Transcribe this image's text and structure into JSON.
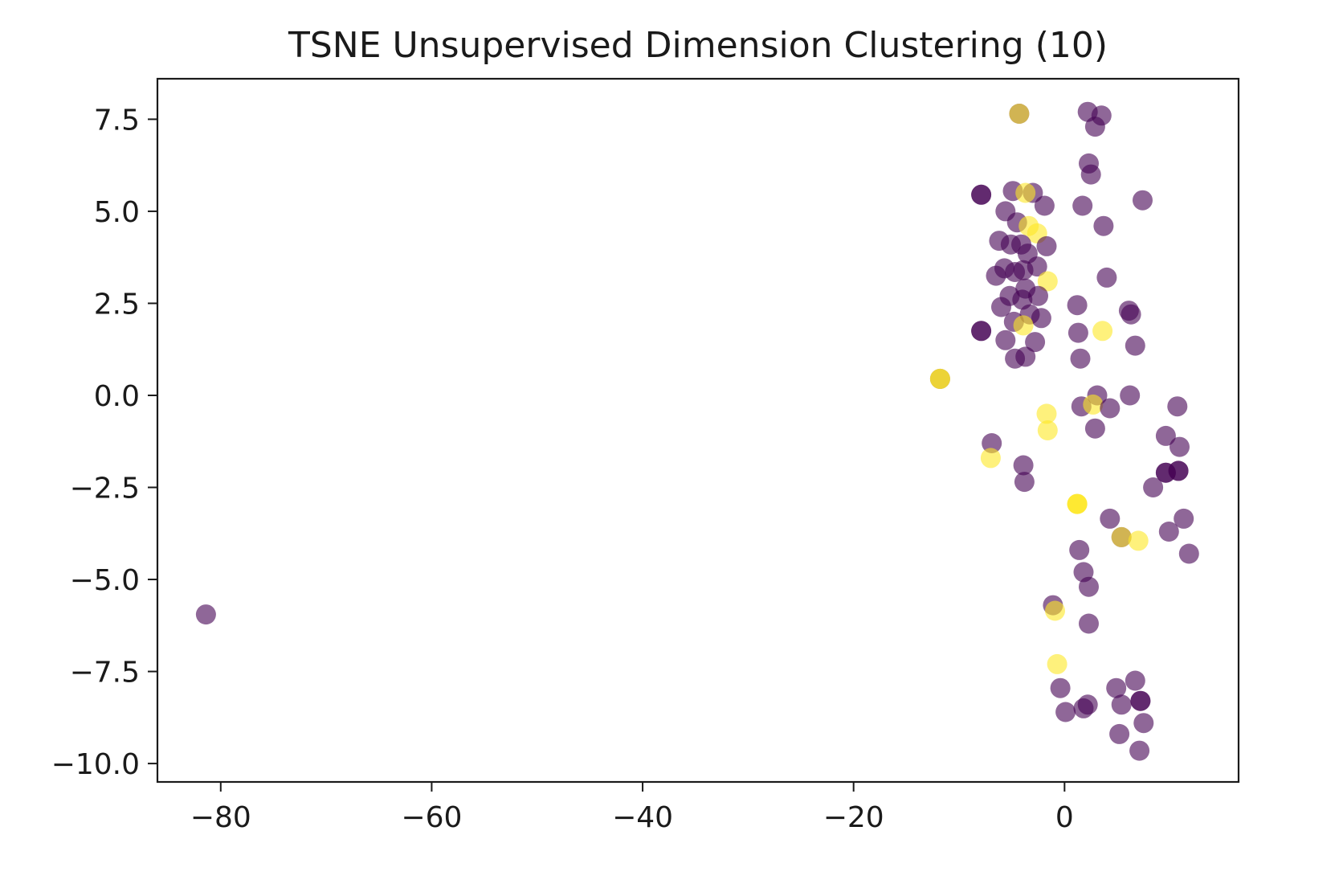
{
  "chart_data": {
    "type": "scatter",
    "title": "TSNE Unsupervised Dimension Clustering (10)",
    "xlabel": "",
    "ylabel": "",
    "xlim": [
      -86,
      16.5
    ],
    "ylim": [
      -10.5,
      8.6
    ],
    "x_ticks": [
      {
        "value": -80,
        "label": "−80"
      },
      {
        "value": -60,
        "label": "−60"
      },
      {
        "value": -40,
        "label": "−40"
      },
      {
        "value": -20,
        "label": "−20"
      },
      {
        "value": 0,
        "label": "0"
      }
    ],
    "y_ticks": [
      {
        "value": 7.5,
        "label": "7.5"
      },
      {
        "value": 5.0,
        "label": "5.0"
      },
      {
        "value": 2.5,
        "label": "2.5"
      },
      {
        "value": 0.0,
        "label": "0.0"
      },
      {
        "value": -2.5,
        "label": "−2.5"
      },
      {
        "value": -5.0,
        "label": "−5.0"
      },
      {
        "value": -7.5,
        "label": "−7.5"
      },
      {
        "value": -10.0,
        "label": "−10.0"
      }
    ],
    "grid": false,
    "legend": "none",
    "colors": {
      "purple": "#440154",
      "yellow": "#fde725"
    },
    "marker_alpha": 0.6,
    "points": [
      {
        "x": -81.4,
        "y": -5.95,
        "c": "purple"
      },
      {
        "x": -4.3,
        "y": 7.65,
        "c": "purple"
      },
      {
        "x": -4.3,
        "y": 7.65,
        "c": "yellow"
      },
      {
        "x": 2.2,
        "y": 7.7,
        "c": "purple"
      },
      {
        "x": 3.5,
        "y": 7.6,
        "c": "purple"
      },
      {
        "x": 2.9,
        "y": 7.3,
        "c": "purple"
      },
      {
        "x": 2.3,
        "y": 6.3,
        "c": "purple"
      },
      {
        "x": 2.5,
        "y": 6.0,
        "c": "purple"
      },
      {
        "x": 7.4,
        "y": 5.3,
        "c": "purple"
      },
      {
        "x": 1.7,
        "y": 5.15,
        "c": "purple"
      },
      {
        "x": 3.7,
        "y": 4.6,
        "c": "purple"
      },
      {
        "x": -7.9,
        "y": 5.45,
        "c": "purple"
      },
      {
        "x": -7.9,
        "y": 5.45,
        "c": "purple"
      },
      {
        "x": -4.9,
        "y": 5.55,
        "c": "purple"
      },
      {
        "x": -3.0,
        "y": 5.5,
        "c": "purple"
      },
      {
        "x": -3.7,
        "y": 5.5,
        "c": "yellow"
      },
      {
        "x": -1.9,
        "y": 5.15,
        "c": "purple"
      },
      {
        "x": -5.6,
        "y": 5.0,
        "c": "purple"
      },
      {
        "x": -4.5,
        "y": 4.7,
        "c": "purple"
      },
      {
        "x": -3.4,
        "y": 4.6,
        "c": "yellow"
      },
      {
        "x": -2.6,
        "y": 4.4,
        "c": "yellow"
      },
      {
        "x": -6.2,
        "y": 4.2,
        "c": "purple"
      },
      {
        "x": -5.1,
        "y": 4.1,
        "c": "purple"
      },
      {
        "x": -4.1,
        "y": 4.1,
        "c": "purple"
      },
      {
        "x": -1.7,
        "y": 4.05,
        "c": "purple"
      },
      {
        "x": -3.5,
        "y": 3.85,
        "c": "purple"
      },
      {
        "x": -5.7,
        "y": 3.45,
        "c": "purple"
      },
      {
        "x": -4.7,
        "y": 3.35,
        "c": "purple"
      },
      {
        "x": -3.9,
        "y": 3.4,
        "c": "purple"
      },
      {
        "x": -2.6,
        "y": 3.5,
        "c": "purple"
      },
      {
        "x": -6.5,
        "y": 3.25,
        "c": "purple"
      },
      {
        "x": -1.6,
        "y": 3.1,
        "c": "yellow"
      },
      {
        "x": -3.7,
        "y": 2.9,
        "c": "purple"
      },
      {
        "x": -5.2,
        "y": 2.7,
        "c": "purple"
      },
      {
        "x": -4.0,
        "y": 2.6,
        "c": "purple"
      },
      {
        "x": -2.5,
        "y": 2.7,
        "c": "purple"
      },
      {
        "x": -6.0,
        "y": 2.4,
        "c": "purple"
      },
      {
        "x": -3.3,
        "y": 2.2,
        "c": "purple"
      },
      {
        "x": -2.2,
        "y": 2.1,
        "c": "purple"
      },
      {
        "x": -4.8,
        "y": 2.0,
        "c": "purple"
      },
      {
        "x": -3.9,
        "y": 1.9,
        "c": "yellow"
      },
      {
        "x": -7.9,
        "y": 1.75,
        "c": "purple"
      },
      {
        "x": -7.9,
        "y": 1.75,
        "c": "purple"
      },
      {
        "x": -5.6,
        "y": 1.5,
        "c": "purple"
      },
      {
        "x": -2.8,
        "y": 1.45,
        "c": "purple"
      },
      {
        "x": -4.7,
        "y": 1.0,
        "c": "purple"
      },
      {
        "x": -3.7,
        "y": 1.05,
        "c": "purple"
      },
      {
        "x": 1.2,
        "y": 2.45,
        "c": "purple"
      },
      {
        "x": 3.6,
        "y": 1.75,
        "c": "yellow"
      },
      {
        "x": 1.3,
        "y": 1.7,
        "c": "purple"
      },
      {
        "x": 1.5,
        "y": 1.0,
        "c": "purple"
      },
      {
        "x": 4.0,
        "y": 3.2,
        "c": "purple"
      },
      {
        "x": 6.1,
        "y": 2.3,
        "c": "purple"
      },
      {
        "x": 6.3,
        "y": 2.2,
        "c": "purple"
      },
      {
        "x": 6.7,
        "y": 1.35,
        "c": "purple"
      },
      {
        "x": -11.8,
        "y": 0.45,
        "c": "purple"
      },
      {
        "x": -11.8,
        "y": 0.45,
        "c": "yellow"
      },
      {
        "x": -11.8,
        "y": 0.45,
        "c": "yellow"
      },
      {
        "x": 3.1,
        "y": 0.0,
        "c": "purple"
      },
      {
        "x": 6.2,
        "y": 0.0,
        "c": "purple"
      },
      {
        "x": 1.6,
        "y": -0.3,
        "c": "purple"
      },
      {
        "x": 2.7,
        "y": -0.25,
        "c": "yellow"
      },
      {
        "x": 4.3,
        "y": -0.35,
        "c": "purple"
      },
      {
        "x": 10.7,
        "y": -0.3,
        "c": "purple"
      },
      {
        "x": -1.7,
        "y": -0.5,
        "c": "yellow"
      },
      {
        "x": -1.6,
        "y": -0.95,
        "c": "yellow"
      },
      {
        "x": 2.9,
        "y": -0.9,
        "c": "purple"
      },
      {
        "x": 9.6,
        "y": -1.1,
        "c": "purple"
      },
      {
        "x": 10.9,
        "y": -1.4,
        "c": "purple"
      },
      {
        "x": -6.9,
        "y": -1.3,
        "c": "purple"
      },
      {
        "x": -7.0,
        "y": -1.7,
        "c": "yellow"
      },
      {
        "x": -3.9,
        "y": -1.9,
        "c": "purple"
      },
      {
        "x": -3.8,
        "y": -2.35,
        "c": "purple"
      },
      {
        "x": 9.6,
        "y": -2.1,
        "c": "purple"
      },
      {
        "x": 9.6,
        "y": -2.1,
        "c": "purple"
      },
      {
        "x": 10.8,
        "y": -2.05,
        "c": "purple"
      },
      {
        "x": 10.8,
        "y": -2.05,
        "c": "purple"
      },
      {
        "x": 8.4,
        "y": -2.5,
        "c": "purple"
      },
      {
        "x": 1.2,
        "y": -2.95,
        "c": "yellow"
      },
      {
        "x": 1.2,
        "y": -2.95,
        "c": "yellow"
      },
      {
        "x": 1.2,
        "y": -2.95,
        "c": "yellow"
      },
      {
        "x": 4.3,
        "y": -3.35,
        "c": "purple"
      },
      {
        "x": 11.3,
        "y": -3.35,
        "c": "purple"
      },
      {
        "x": 9.9,
        "y": -3.7,
        "c": "purple"
      },
      {
        "x": 5.4,
        "y": -3.85,
        "c": "purple"
      },
      {
        "x": 5.4,
        "y": -3.85,
        "c": "yellow"
      },
      {
        "x": 7.0,
        "y": -3.95,
        "c": "yellow"
      },
      {
        "x": 11.8,
        "y": -4.3,
        "c": "purple"
      },
      {
        "x": 1.4,
        "y": -4.2,
        "c": "purple"
      },
      {
        "x": 1.8,
        "y": -4.8,
        "c": "purple"
      },
      {
        "x": 2.3,
        "y": -5.2,
        "c": "purple"
      },
      {
        "x": -1.1,
        "y": -5.7,
        "c": "purple"
      },
      {
        "x": -0.9,
        "y": -5.85,
        "c": "yellow"
      },
      {
        "x": 2.3,
        "y": -6.2,
        "c": "purple"
      },
      {
        "x": -0.7,
        "y": -7.3,
        "c": "yellow"
      },
      {
        "x": -0.4,
        "y": -7.95,
        "c": "purple"
      },
      {
        "x": 6.7,
        "y": -7.75,
        "c": "purple"
      },
      {
        "x": 4.9,
        "y": -7.95,
        "c": "purple"
      },
      {
        "x": 7.2,
        "y": -8.3,
        "c": "purple"
      },
      {
        "x": 7.2,
        "y": -8.3,
        "c": "purple"
      },
      {
        "x": 5.4,
        "y": -8.4,
        "c": "purple"
      },
      {
        "x": 2.2,
        "y": -8.4,
        "c": "purple"
      },
      {
        "x": 1.8,
        "y": -8.5,
        "c": "purple"
      },
      {
        "x": 0.1,
        "y": -8.6,
        "c": "purple"
      },
      {
        "x": 7.5,
        "y": -8.9,
        "c": "purple"
      },
      {
        "x": 5.2,
        "y": -9.2,
        "c": "purple"
      },
      {
        "x": 7.1,
        "y": -9.65,
        "c": "purple"
      }
    ]
  }
}
